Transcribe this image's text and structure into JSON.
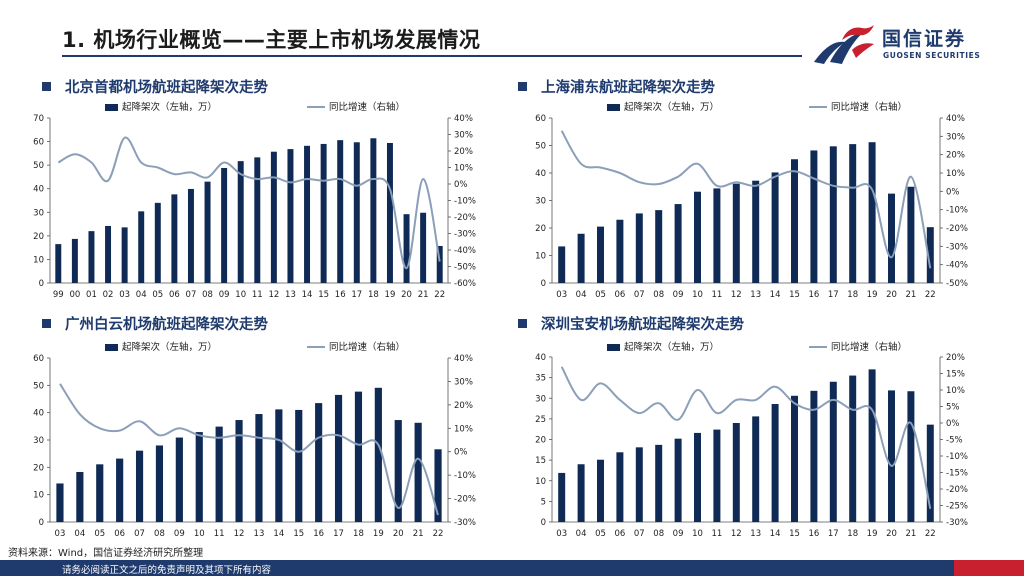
{
  "page_title": "1. 机场行业概览——主要上市机场发展情况",
  "logo": {
    "cn": "国信证券",
    "en": "GUOSEN SECURITIES"
  },
  "source": "资料来源：Wind，国信证券经济研究所整理",
  "footer": "请务必阅读正文之后的免责声明及其项下所有内容",
  "colors": {
    "bar": "#0f2a55",
    "line": "#8c9fb9",
    "accent": "#1f3b6e",
    "red": "#c8202f"
  },
  "chart_data": [
    {
      "type": "bar+line",
      "title": "北京首都机场航班起降架次走势",
      "legend": [
        "起降架次（左轴，万）",
        "同比增速（右轴）"
      ],
      "categories": [
        "99",
        "00",
        "01",
        "02",
        "03",
        "04",
        "05",
        "06",
        "07",
        "08",
        "09",
        "10",
        "11",
        "12",
        "13",
        "14",
        "15",
        "16",
        "17",
        "18",
        "19",
        "20",
        "21",
        "22"
      ],
      "series": [
        {
          "name": "起降架次（左轴，万）",
          "axis": "left",
          "values": [
            16.5,
            18.7,
            22,
            24.2,
            23.6,
            30.4,
            34,
            37.6,
            39.9,
            43,
            48.8,
            51.7,
            53.3,
            55.7,
            56.8,
            58.2,
            59,
            60.6,
            59.7,
            61.4,
            59.4,
            29.2,
            29.8,
            15.7
          ]
        },
        {
          "name": "同比增速（右轴）",
          "axis": "right",
          "values": [
            13,
            18,
            13,
            2,
            28,
            13,
            10,
            6,
            7,
            4,
            13,
            6,
            3,
            4,
            1,
            3,
            2,
            3,
            -1,
            3,
            -3,
            -51,
            3,
            -47
          ]
        }
      ],
      "ylim_left": [
        0,
        70
      ],
      "yticks_left": [
        0,
        10,
        20,
        30,
        40,
        50,
        60,
        70
      ],
      "ylim_right": [
        -60,
        40
      ],
      "yticks_right": [
        -60,
        -50,
        -40,
        -30,
        -20,
        -10,
        0,
        10,
        20,
        30,
        40
      ]
    },
    {
      "type": "bar+line",
      "title": "上海浦东航班起降架次走势",
      "legend": [
        "起降架次（左轴，万）",
        "同比增速（右轴）"
      ],
      "categories": [
        "03",
        "04",
        "05",
        "06",
        "07",
        "08",
        "09",
        "10",
        "11",
        "12",
        "13",
        "14",
        "15",
        "16",
        "17",
        "18",
        "19",
        "20",
        "21",
        "22"
      ],
      "series": [
        {
          "name": "起降架次（左轴，万）",
          "axis": "left",
          "values": [
            13.3,
            17.9,
            20.5,
            23,
            25.3,
            26.5,
            28.7,
            33.2,
            34.4,
            36.1,
            37.2,
            40.2,
            45,
            48.2,
            49.7,
            50.5,
            51.2,
            32.5,
            35,
            20.3
          ]
        },
        {
          "name": "同比增速（右轴）",
          "axis": "right",
          "values": [
            33,
            15,
            13,
            10,
            5,
            4,
            8,
            15,
            3,
            5,
            3,
            8,
            11,
            7,
            3,
            2,
            1,
            -36,
            8,
            -42
          ]
        }
      ],
      "ylim_left": [
        0,
        60
      ],
      "yticks_left": [
        0,
        10,
        20,
        30,
        40,
        50,
        60
      ],
      "ylim_right": [
        -50,
        40
      ],
      "yticks_right": [
        -50,
        -40,
        -30,
        -20,
        -10,
        0,
        10,
        20,
        30,
        40
      ]
    },
    {
      "type": "bar+line",
      "title": "广州白云机场航班起降架次走势",
      "legend": [
        "起降架次（左轴，万）",
        "同比增速（右轴）"
      ],
      "categories": [
        "03",
        "04",
        "05",
        "06",
        "07",
        "08",
        "09",
        "10",
        "11",
        "12",
        "13",
        "14",
        "15",
        "16",
        "17",
        "18",
        "19",
        "20",
        "21",
        "22"
      ],
      "series": [
        {
          "name": "起降架次（左轴，万）",
          "axis": "left",
          "values": [
            14.1,
            18.3,
            21.1,
            23.2,
            26.1,
            28,
            30.9,
            32.9,
            34.9,
            37.3,
            39.5,
            41.2,
            41,
            43.5,
            46.5,
            47.7,
            49.1,
            37.3,
            36.3,
            26.6
          ]
        },
        {
          "name": "同比增速（右轴）",
          "axis": "right",
          "values": [
            29,
            16,
            10,
            9,
            13,
            7,
            10,
            7,
            6,
            7,
            6,
            5,
            0,
            6,
            7,
            3,
            3,
            -24,
            -3,
            -27
          ]
        }
      ],
      "ylim_left": [
        0,
        60
      ],
      "yticks_left": [
        0,
        10,
        20,
        30,
        40,
        50,
        60
      ],
      "ylim_right": [
        -30,
        40
      ],
      "yticks_right": [
        -30,
        -20,
        -10,
        0,
        10,
        20,
        30,
        40
      ]
    },
    {
      "type": "bar+line",
      "title": "深圳宝安机场航班起降架次走势",
      "legend": [
        "起降架次（左轴，万）",
        "同比增速（右轴）"
      ],
      "categories": [
        "03",
        "04",
        "05",
        "06",
        "07",
        "08",
        "09",
        "10",
        "11",
        "12",
        "13",
        "14",
        "15",
        "16",
        "17",
        "18",
        "19",
        "20",
        "21",
        "22"
      ],
      "series": [
        {
          "name": "起降架次（左轴，万）",
          "axis": "left",
          "values": [
            11.9,
            14,
            15.1,
            16.9,
            18.1,
            18.7,
            20.2,
            21.6,
            22.4,
            24,
            25.6,
            28.6,
            30.6,
            31.8,
            34,
            35.5,
            37,
            31.9,
            31.7,
            23.6
          ]
        },
        {
          "name": "同比增速（右轴）",
          "axis": "right",
          "values": [
            17,
            7,
            12,
            7,
            3,
            6,
            1,
            10,
            3,
            7,
            7,
            11,
            6,
            4,
            7,
            4,
            4,
            -13,
            0,
            -26
          ]
        }
      ],
      "ylim_left": [
        0,
        40
      ],
      "yticks_left": [
        0,
        5,
        10,
        15,
        20,
        25,
        30,
        35,
        40
      ],
      "ylim_right": [
        -30,
        20
      ],
      "yticks_right": [
        -30,
        -25,
        -20,
        -15,
        -10,
        -5,
        0,
        5,
        10,
        15,
        20
      ]
    }
  ]
}
